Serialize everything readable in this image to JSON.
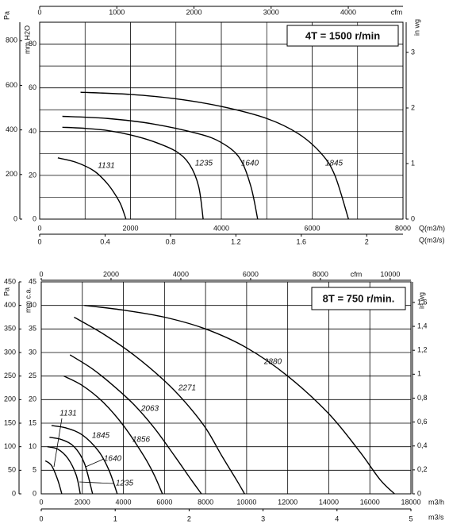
{
  "chart_data": [
    {
      "type": "line",
      "title": "4T = 1500 r/min",
      "x_label": "Q(m3/h)",
      "x2_label": "Q(m3/s)",
      "x3_label": "cfm",
      "y_label": "mm H2O",
      "y2_label": "in wg",
      "y3_label": "Pa",
      "xlim": [
        0,
        8000
      ],
      "xticks": [
        0,
        2000,
        4000,
        6000,
        8000
      ],
      "x2lim": [
        0,
        2.222
      ],
      "x2ticks": [
        0,
        0.4,
        0.8,
        1.2,
        1.6,
        2
      ],
      "x3lim": [
        0,
        4709
      ],
      "x3ticks": [
        0,
        1000,
        2000,
        3000,
        4000
      ],
      "ylim": [
        0,
        90
      ],
      "yticks": [
        0,
        20,
        40,
        60,
        80
      ],
      "y2lim": [
        0,
        3.543
      ],
      "y2ticks": [
        0,
        1,
        2,
        3
      ],
      "y3lim": [
        0,
        882.9
      ],
      "y3ticks": [
        0,
        200,
        400,
        600,
        800
      ],
      "grid": true,
      "minor_grid": true,
      "series": [
        {
          "name": "1131",
          "color": "#000000",
          "x": [
            400,
            800,
            1200,
            1500,
            1700,
            1800,
            1900
          ],
          "values": [
            28,
            26,
            22,
            16,
            10,
            6,
            0
          ]
        },
        {
          "name": "1235",
          "color": "#000000",
          "x": [
            500,
            1000,
            1500,
            2000,
            2500,
            3000,
            3300,
            3500,
            3600
          ],
          "values": [
            42,
            41.5,
            40.5,
            38.5,
            35.5,
            31,
            25,
            15,
            0
          ]
        },
        {
          "name": "1640",
          "color": "#000000",
          "x": [
            500,
            1500,
            2500,
            3500,
            4000,
            4400,
            4650,
            4800
          ],
          "values": [
            47,
            46,
            43.5,
            39,
            35,
            28,
            15,
            0
          ]
        },
        {
          "name": "1845",
          "color": "#000000",
          "x": [
            900,
            2000,
            3000,
            4000,
            5000,
            5700,
            6200,
            6500,
            6800
          ],
          "values": [
            58,
            57,
            55,
            51.5,
            46,
            39,
            30,
            20,
            0
          ]
        }
      ]
    },
    {
      "type": "line",
      "title": "8T = 750 r/min.",
      "x_label": "m3/h",
      "x2_label": "m3/s",
      "x3_label": "cfm",
      "y_label": "mm c.a.",
      "y2_label": "in wg",
      "y3_label": "Pa",
      "xlim": [
        0,
        18000
      ],
      "xticks": [
        0,
        2000,
        4000,
        6000,
        8000,
        10000,
        12000,
        14000,
        16000,
        18000
      ],
      "x2lim": [
        0,
        5
      ],
      "x2ticks": [
        0,
        1,
        2,
        3,
        4,
        5
      ],
      "x3lim": [
        0,
        10594
      ],
      "x3ticks": [
        0,
        2000,
        4000,
        6000,
        8000,
        10000
      ],
      "ylim": [
        0,
        45
      ],
      "yticks": [
        0,
        5,
        10,
        15,
        20,
        25,
        30,
        35,
        40,
        45
      ],
      "y2lim": [
        0,
        1.772
      ],
      "y2ticks": [
        0,
        {
          "value": 0.2,
          "label": "0,2"
        },
        {
          "value": 0.4,
          "label": "0,4"
        },
        {
          "value": 0.6,
          "label": "0,6"
        },
        {
          "value": 0.8,
          "label": "0,8"
        },
        1,
        {
          "value": 1.2,
          "label": "1,2"
        },
        {
          "value": 1.4,
          "label": "1,4"
        },
        {
          "value": 1.6,
          "label": "1,6"
        }
      ],
      "y3lim": [
        0,
        450
      ],
      "y3ticks": [
        0,
        50,
        100,
        150,
        200,
        250,
        300,
        350,
        400,
        450
      ],
      "grid": true,
      "minor_grid": false,
      "series": [
        {
          "name": "1131",
          "color": "#000000",
          "x": [
            200,
            500,
            800,
            1000
          ],
          "values": [
            7,
            6,
            3,
            0
          ]
        },
        {
          "name": "1235",
          "color": "#000000",
          "x": [
            300,
            800,
            1300,
            1700,
            1900
          ],
          "values": [
            10,
            9.5,
            7.5,
            4,
            0
          ]
        },
        {
          "name": "1640",
          "color": "#000000",
          "x": [
            400,
            1000,
            1600,
            2100,
            2500
          ],
          "values": [
            12,
            11.5,
            10,
            6.5,
            0
          ]
        },
        {
          "name": "1845",
          "color": "#000000",
          "x": [
            500,
            1200,
            2000,
            2800,
            3300,
            3700
          ],
          "values": [
            14.5,
            14,
            12.5,
            9,
            5,
            0
          ]
        },
        {
          "name": "1856",
          "color": "#000000",
          "x": [
            1100,
            2000,
            3000,
            4000,
            5000,
            5500,
            5900
          ],
          "values": [
            25,
            23,
            19.5,
            14.5,
            8,
            4,
            0
          ]
        },
        {
          "name": "2063",
          "color": "#000000",
          "x": [
            1400,
            2500,
            3500,
            4500,
            5500,
            6500,
            7300,
            7800
          ],
          "values": [
            29.5,
            26.5,
            23,
            19,
            14,
            8,
            3,
            0
          ]
        },
        {
          "name": "2271",
          "color": "#000000",
          "x": [
            1600,
            3000,
            4500,
            6000,
            7000,
            8000,
            8800,
            9500,
            9900
          ],
          "values": [
            37.5,
            34,
            29.5,
            24,
            19.5,
            14,
            8,
            3,
            0
          ]
        },
        {
          "name": "2880",
          "color": "#000000",
          "x": [
            2100,
            4000,
            6000,
            8000,
            10000,
            12000,
            14000,
            15500,
            16500,
            17200
          ],
          "values": [
            40,
            39,
            37.5,
            35,
            31,
            25,
            17,
            9,
            3,
            0
          ]
        }
      ]
    }
  ]
}
